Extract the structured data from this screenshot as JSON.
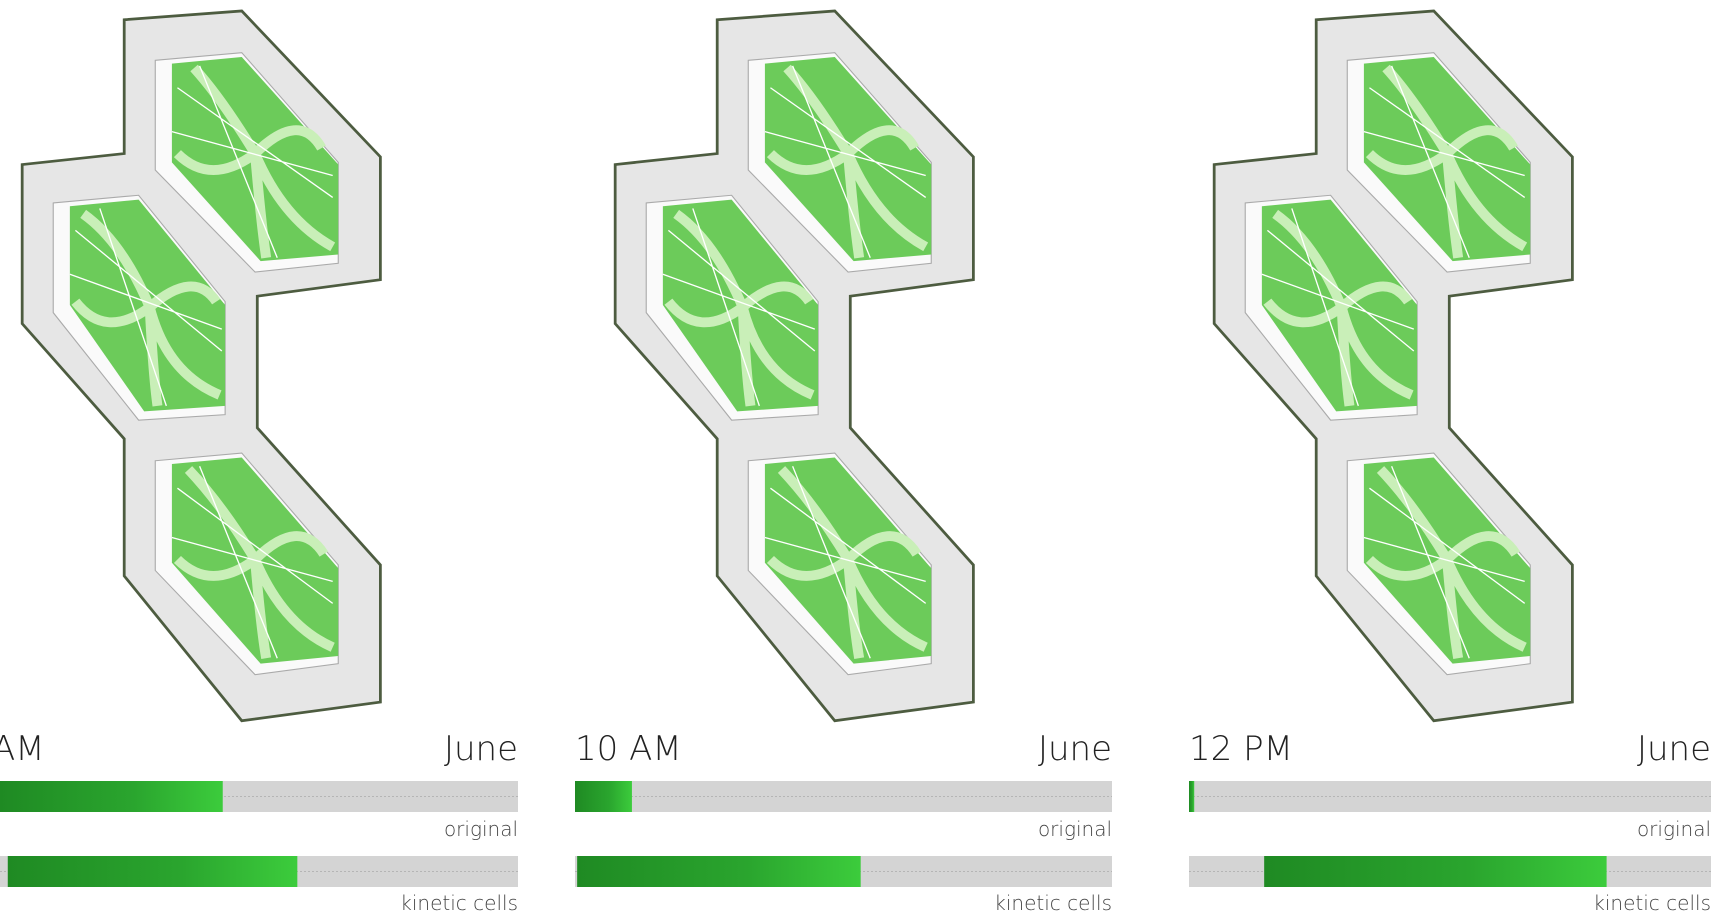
{
  "panels": [
    {
      "time": "AM",
      "month": "June",
      "bars": [
        {
          "label": "original",
          "start": 0,
          "end": 43
        },
        {
          "label": "kinetic cells",
          "start": 1.5,
          "end": 57.4
        }
      ]
    },
    {
      "time": "10 AM",
      "month": "June",
      "bars": [
        {
          "label": "original",
          "start": 0,
          "end": 10.6
        },
        {
          "label": "kinetic cells",
          "start": 0.4,
          "end": 53.2
        }
      ]
    },
    {
      "time": "12 PM",
      "month": "June",
      "bars": [
        {
          "label": "original",
          "start": 0,
          "end": 1
        },
        {
          "label": "kinetic cells",
          "start": 14.4,
          "end": 80
        }
      ]
    }
  ]
}
